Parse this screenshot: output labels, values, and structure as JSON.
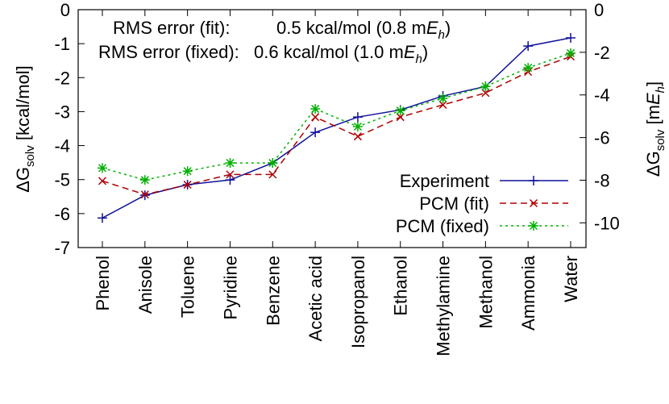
{
  "chart_data": {
    "type": "line",
    "categories": [
      "Phenol",
      "Anisole",
      "Toluene",
      "Pyridine",
      "Benzene",
      "Acetic acid",
      "Isopropanol",
      "Ethanol",
      "Methylamine",
      "Methanol",
      "Ammonia",
      "Water"
    ],
    "series": [
      {
        "name": "Experiment",
        "color": "#10109c",
        "marker": "plus",
        "dash": "solid",
        "values": [
          -6.13,
          -5.46,
          -5.15,
          -5.01,
          -4.51,
          -3.61,
          -3.16,
          -2.95,
          -2.54,
          -2.26,
          -1.07,
          -0.83
        ]
      },
      {
        "name": "PCM (fit)",
        "color": "#b00000",
        "marker": "cross",
        "dash": "dashed",
        "values": [
          -5.04,
          -5.44,
          -5.15,
          -4.85,
          -4.85,
          -3.16,
          -3.73,
          -3.16,
          -2.8,
          -2.45,
          -1.83,
          -1.38
        ]
      },
      {
        "name": "PCM (fixed)",
        "color": "#00b000",
        "marker": "star",
        "dash": "dotted",
        "values": [
          -4.66,
          -5.01,
          -4.75,
          -4.51,
          -4.51,
          -2.92,
          -3.44,
          -2.97,
          -2.61,
          -2.26,
          -1.71,
          -1.28
        ]
      }
    ],
    "ylabel": [
      "ΔG",
      "solv",
      " [kcal/mol]"
    ],
    "y2label": [
      "ΔG",
      "solv",
      " [m",
      "E",
      "h",
      "]"
    ],
    "ylim": [
      -7,
      0
    ],
    "yticks": [
      -7,
      -6,
      -5,
      -4,
      -3,
      -2,
      -1,
      0
    ],
    "y2lim": [
      -11.16,
      0
    ],
    "y2ticks": [
      -10,
      -8,
      -6,
      -4,
      -2,
      0
    ],
    "annotations": [
      [
        "RMS error (fit):",
        "0.5 kcal/mol (0.8 m",
        "E",
        "h",
        ")"
      ],
      [
        "RMS error (fixed):",
        "0.6 kcal/mol (1.0 m",
        "E",
        "h",
        ")"
      ]
    ],
    "legend": "lower right",
    "grid": false
  }
}
